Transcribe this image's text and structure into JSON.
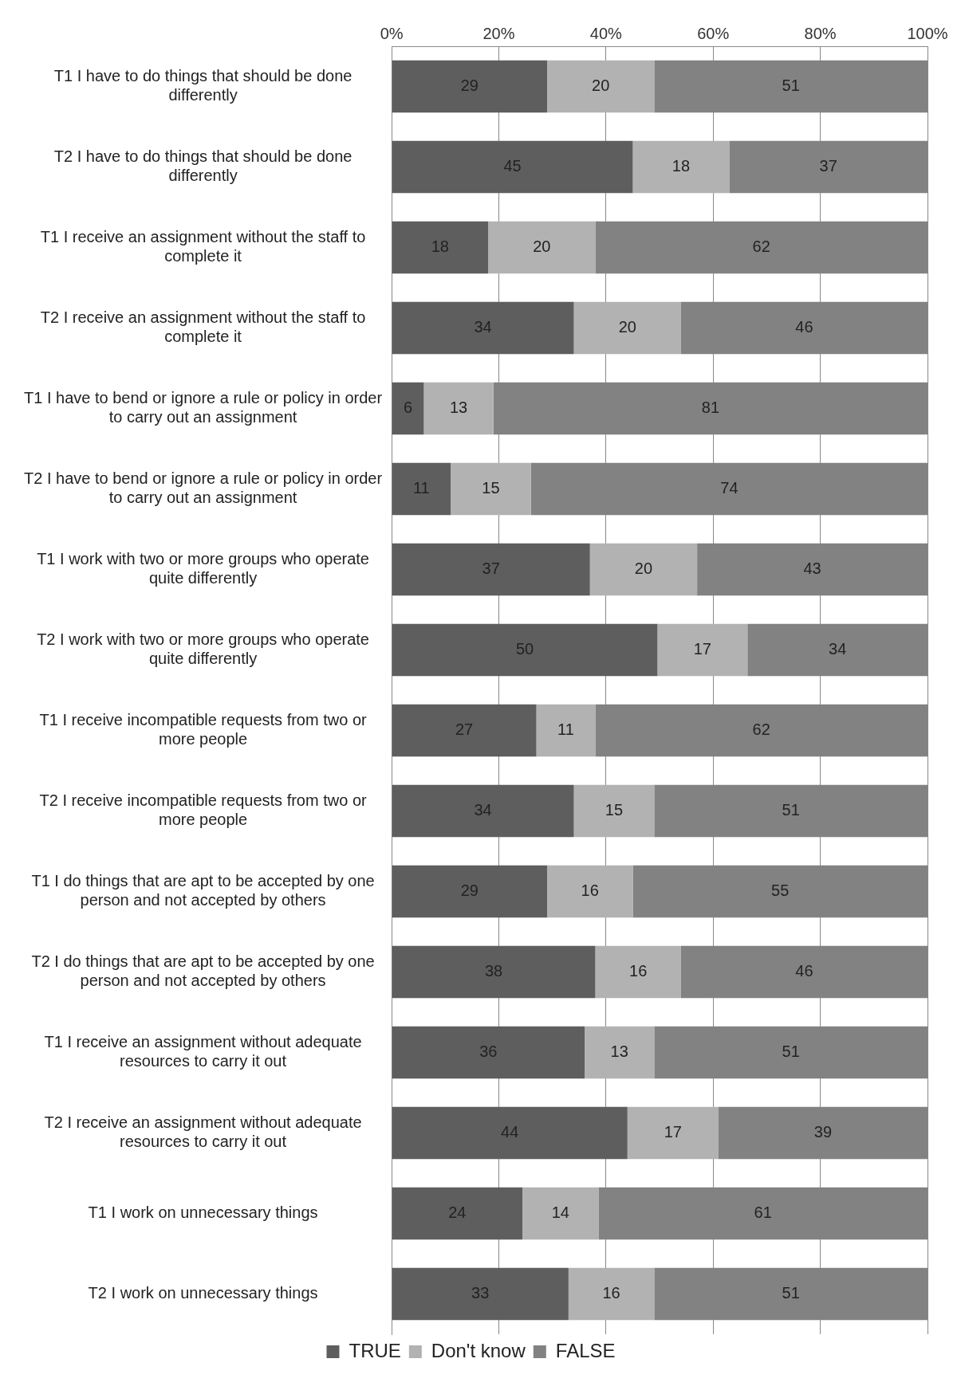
{
  "chart_data": {
    "type": "bar",
    "orientation": "horizontal",
    "stacked": true,
    "grid": "x",
    "legend": "bottom",
    "categories": [
      "T1 I have to do things that should be done differently",
      "T2 I have to do things that should be done differently",
      "T1 I receive an assignment without the staff to complete it",
      "T2 I receive an assignment without the staff to complete it",
      "T1 I have to bend or ignore a rule or policy in order to carry out an assignment",
      "T2 I have to bend or ignore a rule or policy in order to carry out an assignment",
      "T1 I work with two or more groups who operate quite differently",
      "T2 I work with two or more groups who operate quite differently",
      "T1 I receive incompatible requests from two or more people",
      "T2 I receive incompatible requests from two or more people",
      "T1 I do things that are apt to be accepted by one person and not accepted by others",
      "T2 I do things that are apt to be accepted by one person and not accepted by others",
      "T1 I receive an assignment without adequate resources to carry it out",
      "T2 I receive an assignment without adequate resources to carry it out",
      "T1 I work on unnecessary things",
      "T2 I work on unnecessary things"
    ],
    "series": [
      {
        "name": "TRUE",
        "color": "#5e5e5e",
        "values": [
          29,
          45,
          18,
          34,
          6,
          11,
          37,
          49.6,
          27,
          34,
          29,
          38,
          36,
          44,
          24.4,
          33
        ],
        "value_labels": [
          "29",
          "45",
          "18",
          "34",
          "6",
          "11",
          "37",
          "50",
          "27",
          "34",
          "29",
          "38",
          "36",
          "44",
          "24",
          "33"
        ]
      },
      {
        "name": "Don't know",
        "color": "#b2b2b2",
        "values": [
          20,
          18,
          20,
          20,
          13,
          15,
          20,
          16.8,
          11,
          15,
          16,
          16,
          13,
          17,
          14.2,
          16
        ],
        "value_labels": [
          "20",
          "18",
          "20",
          "20",
          "13",
          "15",
          "20",
          "17",
          "11",
          "15",
          "16",
          "16",
          "13",
          "17",
          "14",
          "16"
        ]
      },
      {
        "name": "FALSE",
        "color": "#828282",
        "values": [
          51,
          37,
          62,
          46,
          81,
          74,
          43,
          33.6,
          62,
          51,
          55,
          46,
          51,
          39,
          61.4,
          51
        ],
        "value_labels": [
          "51",
          "37",
          "62",
          "46",
          "81",
          "74",
          "43",
          "34",
          "62",
          "51",
          "55",
          "46",
          "51",
          "39",
          "61",
          "51"
        ]
      }
    ],
    "xlim": [
      0,
      100
    ],
    "xticks": [
      {
        "value": 0,
        "label": "0%"
      },
      {
        "value": 20,
        "label": "20%"
      },
      {
        "value": 40,
        "label": "40%"
      },
      {
        "value": 60,
        "label": "60%"
      },
      {
        "value": 80,
        "label": "80%"
      },
      {
        "value": 100,
        "label": "100%"
      }
    ]
  }
}
